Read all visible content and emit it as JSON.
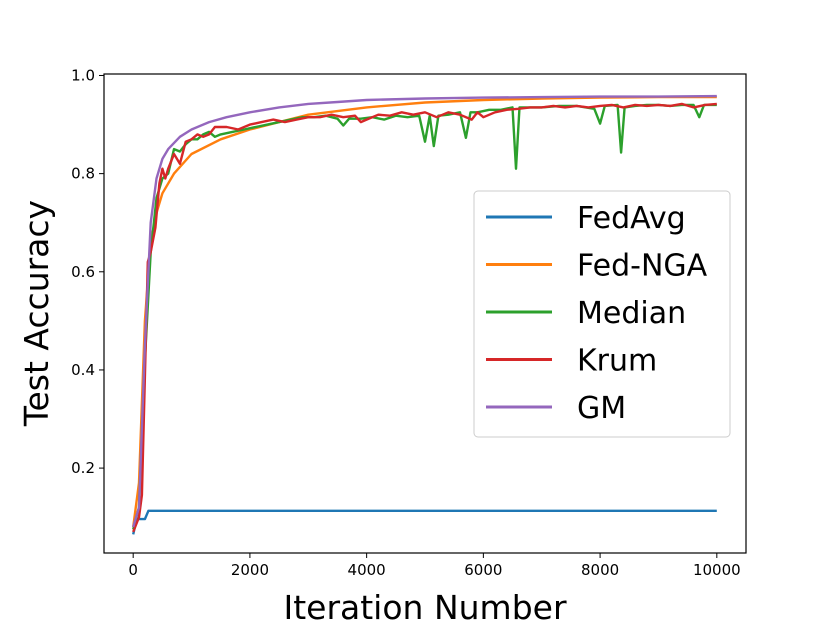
{
  "chart_data": {
    "type": "line",
    "xlabel": "Iteration Number",
    "ylabel": "Test Accuracy",
    "xlim": [
      -500,
      10500
    ],
    "ylim": [
      0.027,
      1.003
    ],
    "xticks": [
      0,
      2000,
      4000,
      6000,
      8000,
      10000
    ],
    "xtick_labels": [
      "0",
      "2000",
      "4000",
      "6000",
      "8000",
      "10000"
    ],
    "yticks": [
      0.2,
      0.4,
      0.6,
      0.8,
      1.0
    ],
    "ytick_labels": [
      "0.2",
      "0.4",
      "0.6",
      "0.8",
      "1.0"
    ],
    "grid": false,
    "legend_position": "center-right",
    "series": [
      {
        "name": "FedAvg",
        "color": "#1f77b4",
        "points": [
          [
            0,
            0.065
          ],
          [
            60,
            0.096
          ],
          [
            120,
            0.096
          ],
          [
            200,
            0.096
          ],
          [
            260,
            0.113
          ],
          [
            10000,
            0.113
          ]
        ]
      },
      {
        "name": "Fed-NGA",
        "color": "#ff7f0e",
        "points": [
          [
            0,
            0.08
          ],
          [
            100,
            0.17
          ],
          [
            200,
            0.5
          ],
          [
            300,
            0.66
          ],
          [
            400,
            0.72
          ],
          [
            500,
            0.76
          ],
          [
            700,
            0.8
          ],
          [
            1000,
            0.84
          ],
          [
            1500,
            0.87
          ],
          [
            2000,
            0.89
          ],
          [
            3000,
            0.92
          ],
          [
            4000,
            0.935
          ],
          [
            5000,
            0.945
          ],
          [
            6000,
            0.95
          ],
          [
            7000,
            0.953
          ],
          [
            8000,
            0.955
          ],
          [
            9000,
            0.956
          ],
          [
            10000,
            0.956
          ]
        ]
      },
      {
        "name": "Median",
        "color": "#2ca02c",
        "points": [
          [
            0,
            0.075
          ],
          [
            100,
            0.12
          ],
          [
            200,
            0.42
          ],
          [
            300,
            0.64
          ],
          [
            400,
            0.75
          ],
          [
            500,
            0.79
          ],
          [
            600,
            0.8
          ],
          [
            700,
            0.85
          ],
          [
            800,
            0.845
          ],
          [
            900,
            0.86
          ],
          [
            1000,
            0.87
          ],
          [
            1100,
            0.87
          ],
          [
            1200,
            0.88
          ],
          [
            1300,
            0.885
          ],
          [
            1400,
            0.875
          ],
          [
            1500,
            0.88
          ],
          [
            1700,
            0.885
          ],
          [
            1900,
            0.89
          ],
          [
            2100,
            0.895
          ],
          [
            2300,
            0.9
          ],
          [
            2500,
            0.905
          ],
          [
            2700,
            0.91
          ],
          [
            2900,
            0.915
          ],
          [
            3100,
            0.915
          ],
          [
            3300,
            0.918
          ],
          [
            3500,
            0.912
          ],
          [
            3600,
            0.898
          ],
          [
            3700,
            0.912
          ],
          [
            3900,
            0.912
          ],
          [
            4100,
            0.915
          ],
          [
            4300,
            0.91
          ],
          [
            4500,
            0.918
          ],
          [
            4700,
            0.915
          ],
          [
            4900,
            0.918
          ],
          [
            5000,
            0.865
          ],
          [
            5080,
            0.918
          ],
          [
            5150,
            0.856
          ],
          [
            5230,
            0.918
          ],
          [
            5400,
            0.92
          ],
          [
            5600,
            0.925
          ],
          [
            5700,
            0.873
          ],
          [
            5780,
            0.925
          ],
          [
            5900,
            0.925
          ],
          [
            6100,
            0.93
          ],
          [
            6300,
            0.93
          ],
          [
            6500,
            0.935
          ],
          [
            6560,
            0.81
          ],
          [
            6620,
            0.935
          ],
          [
            6800,
            0.935
          ],
          [
            7000,
            0.935
          ],
          [
            7300,
            0.938
          ],
          [
            7600,
            0.938
          ],
          [
            7900,
            0.932
          ],
          [
            8000,
            0.902
          ],
          [
            8080,
            0.938
          ],
          [
            8300,
            0.94
          ],
          [
            8360,
            0.843
          ],
          [
            8420,
            0.935
          ],
          [
            8600,
            0.938
          ],
          [
            8800,
            0.94
          ],
          [
            9000,
            0.94
          ],
          [
            9200,
            0.938
          ],
          [
            9400,
            0.94
          ],
          [
            9600,
            0.94
          ],
          [
            9700,
            0.915
          ],
          [
            9780,
            0.94
          ],
          [
            10000,
            0.94
          ]
        ]
      },
      {
        "name": "Krum",
        "color": "#d62728",
        "points": [
          [
            0,
            0.07
          ],
          [
            100,
            0.1
          ],
          [
            150,
            0.145
          ],
          [
            250,
            0.62
          ],
          [
            300,
            0.64
          ],
          [
            380,
            0.69
          ],
          [
            450,
            0.78
          ],
          [
            500,
            0.81
          ],
          [
            550,
            0.79
          ],
          [
            600,
            0.81
          ],
          [
            700,
            0.84
          ],
          [
            800,
            0.82
          ],
          [
            900,
            0.865
          ],
          [
            1000,
            0.87
          ],
          [
            1100,
            0.88
          ],
          [
            1200,
            0.875
          ],
          [
            1300,
            0.88
          ],
          [
            1400,
            0.895
          ],
          [
            1600,
            0.895
          ],
          [
            1800,
            0.89
          ],
          [
            2000,
            0.9
          ],
          [
            2200,
            0.905
          ],
          [
            2400,
            0.91
          ],
          [
            2600,
            0.905
          ],
          [
            2800,
            0.91
          ],
          [
            3000,
            0.915
          ],
          [
            3200,
            0.915
          ],
          [
            3400,
            0.92
          ],
          [
            3600,
            0.915
          ],
          [
            3800,
            0.918
          ],
          [
            3900,
            0.905
          ],
          [
            4000,
            0.91
          ],
          [
            4200,
            0.92
          ],
          [
            4400,
            0.918
          ],
          [
            4600,
            0.925
          ],
          [
            4800,
            0.92
          ],
          [
            5000,
            0.925
          ],
          [
            5200,
            0.915
          ],
          [
            5400,
            0.925
          ],
          [
            5600,
            0.92
          ],
          [
            5800,
            0.91
          ],
          [
            5900,
            0.925
          ],
          [
            6000,
            0.915
          ],
          [
            6200,
            0.925
          ],
          [
            6400,
            0.93
          ],
          [
            6600,
            0.932
          ],
          [
            6800,
            0.935
          ],
          [
            7000,
            0.935
          ],
          [
            7200,
            0.938
          ],
          [
            7400,
            0.935
          ],
          [
            7600,
            0.938
          ],
          [
            7800,
            0.935
          ],
          [
            8000,
            0.938
          ],
          [
            8200,
            0.94
          ],
          [
            8400,
            0.935
          ],
          [
            8600,
            0.94
          ],
          [
            8800,
            0.938
          ],
          [
            9000,
            0.94
          ],
          [
            9200,
            0.938
          ],
          [
            9400,
            0.942
          ],
          [
            9600,
            0.935
          ],
          [
            9800,
            0.94
          ],
          [
            10000,
            0.942
          ]
        ]
      },
      {
        "name": "GM",
        "color": "#9467bd",
        "points": [
          [
            0,
            0.08
          ],
          [
            100,
            0.12
          ],
          [
            200,
            0.45
          ],
          [
            300,
            0.7
          ],
          [
            400,
            0.79
          ],
          [
            500,
            0.83
          ],
          [
            600,
            0.85
          ],
          [
            800,
            0.875
          ],
          [
            1000,
            0.89
          ],
          [
            1300,
            0.905
          ],
          [
            1600,
            0.915
          ],
          [
            2000,
            0.925
          ],
          [
            2500,
            0.935
          ],
          [
            3000,
            0.942
          ],
          [
            3500,
            0.946
          ],
          [
            4000,
            0.95
          ],
          [
            5000,
            0.953
          ],
          [
            6000,
            0.955
          ],
          [
            7000,
            0.956
          ],
          [
            8000,
            0.957
          ],
          [
            9000,
            0.957
          ],
          [
            10000,
            0.958
          ]
        ]
      }
    ]
  }
}
